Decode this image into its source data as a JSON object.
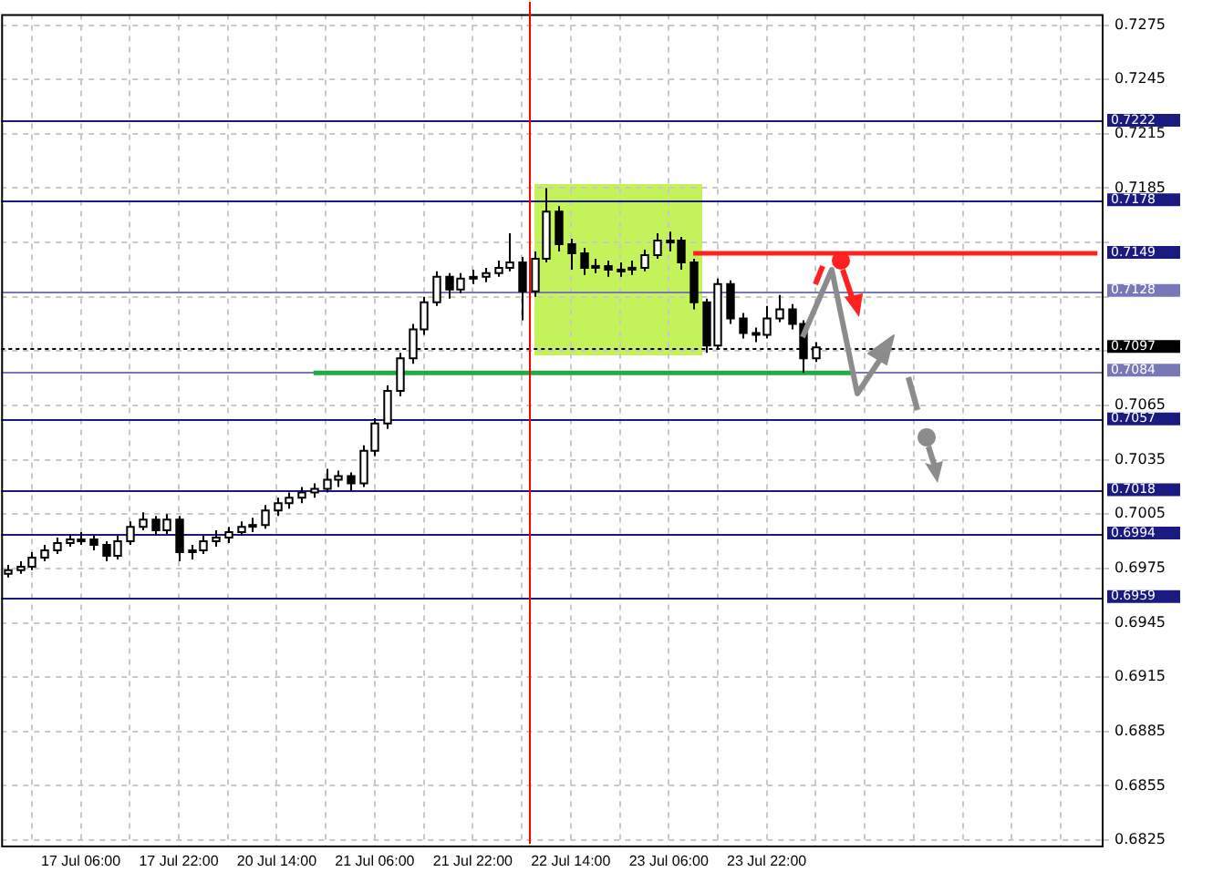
{
  "chart_data": {
    "type": "candlestick",
    "color": "#000000",
    "colors": [
      "#ffffff",
      "#ffffff",
      "#ffffff",
      "#ffffff",
      "#ffffff",
      "#ffffff",
      "#ffffff",
      "#000000",
      "#000000",
      "#ffffff",
      "#ffffff",
      "#ffffff",
      "#000000",
      "#ffffff",
      "#000000",
      "#ffffff",
      "#ffffff",
      "#ffffff",
      "#ffffff",
      "#ffffff",
      "#ffffff",
      "#ffffff",
      "#ffffff",
      "#ffffff",
      "#ffffff",
      "#ffffff",
      "#ffffff",
      "#ffffff",
      "#000000",
      "#ffffff",
      "#ffffff",
      "#ffffff",
      "#ffffff",
      "#ffffff",
      "#ffffff",
      "#ffffff",
      "#000000",
      "#ffffff",
      "#ffffff",
      "#ffffff",
      "#ffffff",
      "#ffffff",
      "#000000",
      "#ffffff",
      "#ffffff",
      "#000000",
      "#000000",
      "#000000",
      "#ffffff",
      "#000000",
      "#ffffff",
      "#ffffff",
      "#ffffff",
      "#ffffff",
      "#ffffff",
      "#000000",
      "#000000",
      "#000000",
      "#ffffff",
      "#000000",
      "#000000",
      "#000000",
      "#ffffff",
      "#ffffff",
      "#000000",
      "#000000",
      "#ffffff",
      null,
      null,
      null,
      null,
      null,
      null,
      null,
      null,
      null,
      null,
      null,
      null,
      null,
      null,
      null,
      null,
      null,
      null,
      null,
      null,
      null,
      null,
      null
    ],
    "categories": [
      null,
      null,
      null,
      null,
      null,
      null,
      "17 Jul 06:00",
      null,
      null,
      null,
      null,
      null,
      null,
      null,
      "17 Jul 22:00",
      null,
      null,
      null,
      null,
      null,
      null,
      null,
      "20 Jul 14:00",
      null,
      null,
      null,
      null,
      null,
      null,
      null,
      "21 Jul 06:00",
      null,
      null,
      null,
      null,
      null,
      null,
      null,
      "21 Jul 22:00",
      null,
      null,
      null,
      null,
      null,
      null,
      null,
      "22 Jul 14:00",
      null,
      null,
      null,
      null,
      null,
      null,
      null,
      "23 Jul 06:00",
      null,
      null,
      null,
      null,
      null,
      null,
      null,
      "23 Jul 22:00",
      null,
      null,
      null,
      null,
      null,
      null,
      null,
      null,
      null,
      null,
      null,
      null,
      null,
      null,
      null,
      null,
      null,
      null,
      null,
      null,
      null,
      null,
      null,
      null,
      null,
      null,
      null
    ],
    "ohlc": [
      [
        0.6972,
        0.6977,
        0.697,
        0.6974
      ],
      [
        0.6974,
        0.6979,
        0.6972,
        0.6976
      ],
      [
        0.6976,
        0.6984,
        0.6974,
        0.6981
      ],
      [
        0.6981,
        0.6988,
        0.6979,
        0.6985
      ],
      [
        0.6985,
        0.6992,
        0.6983,
        0.6989
      ],
      [
        0.6989,
        0.6994,
        0.6987,
        0.6991
      ],
      [
        0.6991,
        0.6995,
        0.6988,
        0.6991
      ],
      [
        0.6991,
        0.6993,
        0.6985,
        0.6988
      ],
      [
        0.6988,
        0.699,
        0.6979,
        0.6982
      ],
      [
        0.6982,
        0.6993,
        0.698,
        0.699
      ],
      [
        0.699,
        0.7001,
        0.6988,
        0.6998
      ],
      [
        0.6998,
        0.7006,
        0.6996,
        0.7002
      ],
      [
        0.7002,
        0.7004,
        0.6993,
        0.6996
      ],
      [
        0.6996,
        0.7005,
        0.6994,
        0.7002
      ],
      [
        0.7002,
        0.7004,
        0.6979,
        0.6984
      ],
      [
        0.6984,
        0.6988,
        0.698,
        0.6985
      ],
      [
        0.6985,
        0.6993,
        0.6983,
        0.699
      ],
      [
        0.699,
        0.6996,
        0.6987,
        0.6992
      ],
      [
        0.6992,
        0.6998,
        0.6989,
        0.6995
      ],
      [
        0.6995,
        0.7001,
        0.6993,
        0.6998
      ],
      [
        0.6998,
        0.7003,
        0.6995,
        0.6999
      ],
      [
        0.6999,
        0.701,
        0.6997,
        0.7007
      ],
      [
        0.7007,
        0.7014,
        0.7004,
        0.7011
      ],
      [
        0.7011,
        0.7017,
        0.7008,
        0.7014
      ],
      [
        0.7014,
        0.702,
        0.7011,
        0.7017
      ],
      [
        0.7017,
        0.7022,
        0.7014,
        0.7019
      ],
      [
        0.7019,
        0.703,
        0.7017,
        0.7024
      ],
      [
        0.7024,
        0.7029,
        0.702,
        0.7026
      ],
      [
        0.7026,
        0.7028,
        0.7018,
        0.7022
      ],
      [
        0.7022,
        0.7043,
        0.702,
        0.704
      ],
      [
        0.704,
        0.7058,
        0.7037,
        0.7055
      ],
      [
        0.7055,
        0.7076,
        0.7052,
        0.7073
      ],
      [
        0.7073,
        0.7094,
        0.707,
        0.7091
      ],
      [
        0.7091,
        0.711,
        0.7088,
        0.7107
      ],
      [
        0.7107,
        0.7125,
        0.7104,
        0.7122
      ],
      [
        0.7122,
        0.7139,
        0.712,
        0.7136
      ],
      [
        0.7136,
        0.7138,
        0.7124,
        0.7129
      ],
      [
        0.7129,
        0.7138,
        0.7127,
        0.7135
      ],
      [
        0.7135,
        0.714,
        0.7132,
        0.7136
      ],
      [
        0.7136,
        0.7141,
        0.7133,
        0.7138
      ],
      [
        0.7138,
        0.7145,
        0.7136,
        0.7141
      ],
      [
        0.7141,
        0.716,
        0.7139,
        0.7144
      ],
      [
        0.7144,
        0.7147,
        0.7112,
        0.7128
      ],
      [
        0.7128,
        0.715,
        0.7125,
        0.7146
      ],
      [
        0.7146,
        0.7185,
        0.7144,
        0.7172
      ],
      [
        0.7172,
        0.7175,
        0.715,
        0.7154
      ],
      [
        0.7154,
        0.7157,
        0.714,
        0.7149
      ],
      [
        0.7149,
        0.7152,
        0.7137,
        0.7141
      ],
      [
        0.7141,
        0.7146,
        0.7138,
        0.7142
      ],
      [
        0.7142,
        0.7145,
        0.7136,
        0.714
      ],
      [
        0.714,
        0.7144,
        0.7136,
        0.714
      ],
      [
        0.714,
        0.7145,
        0.7137,
        0.7141
      ],
      [
        0.7141,
        0.7151,
        0.7139,
        0.7148
      ],
      [
        0.7148,
        0.716,
        0.7146,
        0.7156
      ],
      [
        0.7156,
        0.7161,
        0.715,
        0.7156
      ],
      [
        0.7156,
        0.7158,
        0.714,
        0.7144
      ],
      [
        0.7144,
        0.7146,
        0.7118,
        0.7122
      ],
      [
        0.7122,
        0.7124,
        0.7094,
        0.7098
      ],
      [
        0.7098,
        0.7135,
        0.7096,
        0.7132
      ],
      [
        0.7132,
        0.7134,
        0.711,
        0.7113
      ],
      [
        0.7113,
        0.7116,
        0.7102,
        0.7105
      ],
      [
        0.7105,
        0.7108,
        0.71,
        0.7104
      ],
      [
        0.7104,
        0.712,
        0.7102,
        0.7113
      ],
      [
        0.7113,
        0.7126,
        0.7111,
        0.7118
      ],
      [
        0.7118,
        0.7121,
        0.7107,
        0.711
      ],
      [
        0.711,
        0.7112,
        0.7083,
        0.7091
      ],
      [
        0.7091,
        0.71,
        0.7089,
        0.7097
      ],
      null,
      null,
      null,
      null,
      null,
      null,
      null,
      null,
      null,
      null,
      null,
      null,
      null,
      null,
      null,
      null,
      null,
      null,
      null,
      null,
      null,
      null,
      null
    ],
    "series": [
      {
        "type": "line",
        "color": "#ff2020",
        "values": [
          null,
          null,
          null,
          null,
          null,
          null,
          null,
          null,
          null,
          null,
          null,
          null,
          null,
          null,
          null,
          null,
          null,
          null,
          null,
          null,
          null,
          null,
          null,
          null,
          null,
          null,
          null,
          null,
          null,
          null,
          null,
          null,
          null,
          null,
          null,
          null,
          null,
          null,
          null,
          null,
          null,
          null,
          null,
          null,
          null,
          null,
          null,
          null,
          null,
          null,
          null,
          null,
          null,
          null,
          null,
          null,
          0.7149,
          0.7149,
          0.7149,
          0.7149,
          0.7149,
          0.7149,
          0.7149,
          0.7149,
          0.7149,
          0.7149,
          0.7149,
          0.7149,
          0.7149,
          0.7149,
          0.7149,
          0.7149,
          0.7149,
          0.7149,
          0.7149,
          0.7149,
          0.7149,
          0.7149,
          0.7149,
          0.7149,
          0.7149,
          0.7149,
          0.7149,
          0.7149,
          0.7149,
          0.7149,
          0.7149,
          0.7149,
          0.7149,
          0.7149
        ]
      },
      {
        "type": "line",
        "color": "#22aa44",
        "values": [
          null,
          null,
          null,
          null,
          null,
          null,
          null,
          null,
          null,
          null,
          null,
          null,
          null,
          null,
          null,
          null,
          null,
          null,
          null,
          null,
          null,
          null,
          null,
          null,
          null,
          0.7083,
          0.7083,
          0.7083,
          0.7083,
          0.7083,
          0.7083,
          0.7083,
          0.7083,
          0.7083,
          0.7083,
          0.7083,
          0.7083,
          0.7083,
          0.7083,
          0.7083,
          0.7083,
          0.7083,
          0.7083,
          0.7083,
          0.7083,
          0.7083,
          0.7083,
          0.7083,
          0.7083,
          0.7083,
          0.7083,
          0.7083,
          0.7083,
          0.7083,
          0.7083,
          0.7083,
          0.7083,
          0.7083,
          0.7083,
          0.7083,
          0.7083,
          0.7083,
          0.7083,
          0.7083,
          0.7083,
          0.7083,
          0.7083,
          0.7083,
          0.7083,
          0.7083,
          null,
          null,
          null,
          null,
          null,
          null,
          null,
          null,
          null,
          null,
          null,
          null,
          null,
          null,
          null,
          null,
          null,
          null,
          null,
          null
        ]
      }
    ],
    "ylim": [
      0.6822,
      0.7281
    ],
    "yticks": [
      0.7275,
      0.7245,
      0.7215,
      0.7185,
      {
        "value": 0.7155,
        "label": null
      },
      {
        "value": 0.7125,
        "label": null
      },
      {
        "value": 0.7095,
        "label": null
      },
      0.7065,
      0.7035,
      0.7005,
      0.6975,
      0.6945,
      0.6915,
      0.6885,
      0.6855,
      0.6825
    ],
    "grid": true,
    "ref_lines": [
      {
        "axis": "y",
        "value": 0.7222,
        "label": "0.7222",
        "color": "#1a1a80"
      },
      {
        "axis": "y",
        "value": 0.7178,
        "label": "0.7178",
        "color": "#1a1a80"
      },
      {
        "axis": "y",
        "value": 0.7128,
        "label": "0.7128",
        "color": "#7878b8"
      },
      {
        "axis": "y",
        "value": 0.7097,
        "label": "0.7097",
        "color": "#000000",
        "line_style": "dotted"
      },
      {
        "axis": "y",
        "value": 0.7084,
        "label": "0.7084",
        "color": "#7878b8"
      },
      {
        "axis": "y",
        "value": 0.7057,
        "label": "0.7057",
        "color": "#1a1a80"
      },
      {
        "axis": "y",
        "value": 0.7018,
        "label": "0.7018",
        "color": "#1a1a80"
      },
      {
        "axis": "y",
        "value": 0.6994,
        "label": "0.6994",
        "color": "#1a1a80"
      },
      {
        "axis": "y",
        "value": 0.6959,
        "label": "0.6959",
        "color": "#1a1a80"
      }
    ],
    "annotations": [
      "0.7149"
    ]
  }
}
